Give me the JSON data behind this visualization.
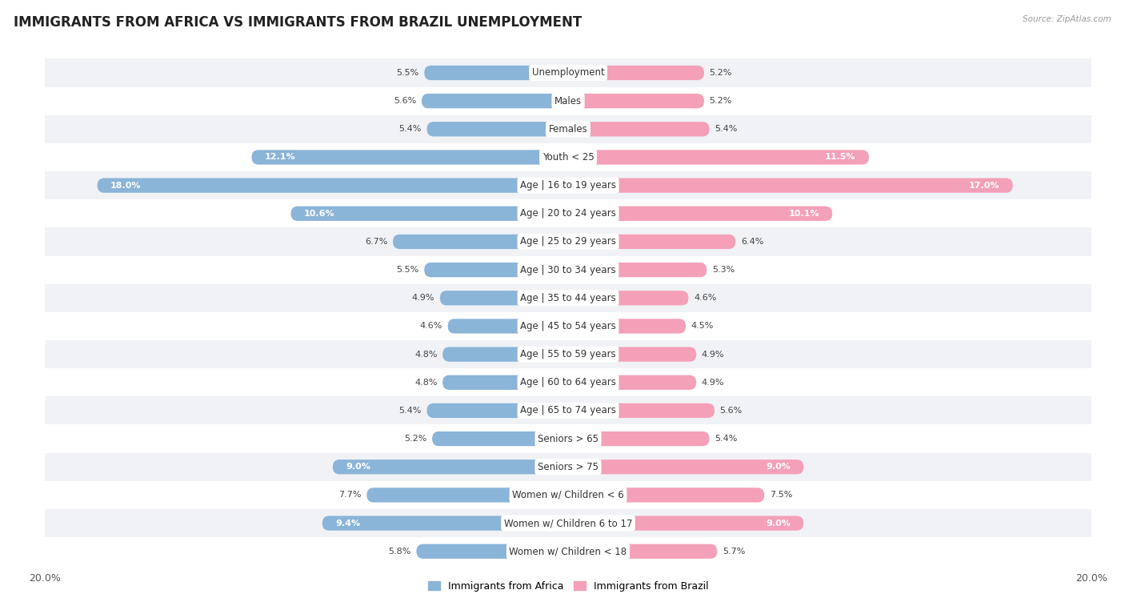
{
  "title": "IMMIGRANTS FROM AFRICA VS IMMIGRANTS FROM BRAZIL UNEMPLOYMENT",
  "source": "Source: ZipAtlas.com",
  "categories": [
    "Unemployment",
    "Males",
    "Females",
    "Youth < 25",
    "Age | 16 to 19 years",
    "Age | 20 to 24 years",
    "Age | 25 to 29 years",
    "Age | 30 to 34 years",
    "Age | 35 to 44 years",
    "Age | 45 to 54 years",
    "Age | 55 to 59 years",
    "Age | 60 to 64 years",
    "Age | 65 to 74 years",
    "Seniors > 65",
    "Seniors > 75",
    "Women w/ Children < 6",
    "Women w/ Children 6 to 17",
    "Women w/ Children < 18"
  ],
  "africa_values": [
    5.5,
    5.6,
    5.4,
    12.1,
    18.0,
    10.6,
    6.7,
    5.5,
    4.9,
    4.6,
    4.8,
    4.8,
    5.4,
    5.2,
    9.0,
    7.7,
    9.4,
    5.8
  ],
  "brazil_values": [
    5.2,
    5.2,
    5.4,
    11.5,
    17.0,
    10.1,
    6.4,
    5.3,
    4.6,
    4.5,
    4.9,
    4.9,
    5.6,
    5.4,
    9.0,
    7.5,
    9.0,
    5.7
  ],
  "africa_color": "#8ab4d8",
  "brazil_color": "#f4a0b8",
  "africa_label": "Immigrants from Africa",
  "brazil_label": "Immigrants from Brazil",
  "max_val": 20.0,
  "bg_color": "#ffffff",
  "row_colors": [
    "#f0f2f5",
    "#ffffff"
  ],
  "title_fontsize": 12,
  "label_fontsize": 8.5,
  "value_fontsize": 8.0,
  "bar_height": 0.52
}
